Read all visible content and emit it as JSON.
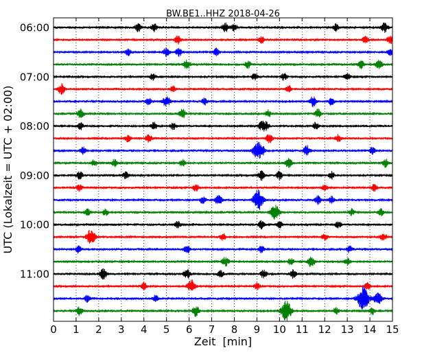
{
  "chart_data": {
    "type": "line",
    "title": "BW.BE1..HHZ 2018-04-26",
    "xlabel": "Zeit  [min]",
    "ylabel": "UTC (Lokalzeit = UTC + 02:00)",
    "xlim": [
      0,
      15
    ],
    "x_ticks": [
      "0",
      "1",
      "2",
      "3",
      "4",
      "5",
      "6",
      "7",
      "8",
      "9",
      "10",
      "11",
      "12",
      "13",
      "14",
      "15"
    ],
    "y_tick_labels": [
      "06:00",
      "07:00",
      "08:00",
      "09:00",
      "10:00",
      "11:00"
    ],
    "grid": true,
    "trace_colors": [
      "#000000",
      "#ff0000",
      "#0000ff",
      "#008000"
    ],
    "traces": [
      {
        "start": "06:00",
        "events": [
          [
            3.75,
            0.35
          ],
          [
            4.45,
            0.35
          ],
          [
            7.6,
            0.4
          ],
          [
            8.0,
            0.3
          ],
          [
            12.5,
            0.3
          ],
          [
            14.65,
            0.4
          ]
        ]
      },
      {
        "start": "06:15",
        "events": [
          [
            5.5,
            0.35
          ],
          [
            9.2,
            0.3
          ],
          [
            13.8,
            0.3
          ],
          [
            14.9,
            0.35
          ]
        ]
      },
      {
        "start": "06:30",
        "events": [
          [
            3.3,
            0.3
          ],
          [
            5.0,
            0.35
          ],
          [
            5.55,
            0.35
          ],
          [
            7.2,
            0.3
          ],
          [
            14.9,
            0.3
          ]
        ]
      },
      {
        "start": "06:45",
        "events": [
          [
            5.9,
            0.4
          ],
          [
            8.6,
            0.3
          ],
          [
            13.6,
            0.35
          ],
          [
            14.4,
            0.4
          ]
        ]
      },
      {
        "start": "07:00",
        "events": [
          [
            4.4,
            0.3
          ],
          [
            8.9,
            0.3
          ],
          [
            10.2,
            0.3
          ],
          [
            13.0,
            0.3
          ]
        ]
      },
      {
        "start": "07:15",
        "events": [
          [
            0.35,
            0.45
          ],
          [
            5.3,
            0.3
          ],
          [
            10.4,
            0.3
          ]
        ]
      },
      {
        "start": "07:30",
        "events": [
          [
            4.2,
            0.3
          ],
          [
            5.0,
            0.5
          ],
          [
            6.7,
            0.3
          ],
          [
            11.5,
            0.45
          ],
          [
            12.3,
            0.3
          ]
        ]
      },
      {
        "start": "07:45",
        "events": [
          [
            1.2,
            0.4
          ],
          [
            5.7,
            0.4
          ],
          [
            9.5,
            0.3
          ],
          [
            11.7,
            0.35
          ]
        ]
      },
      {
        "start": "08:00",
        "events": [
          [
            1.2,
            0.3
          ],
          [
            4.45,
            0.35
          ],
          [
            5.3,
            0.3
          ],
          [
            9.2,
            0.35
          ],
          [
            9.4,
            0.35
          ],
          [
            11.6,
            0.3
          ]
        ]
      },
      {
        "start": "08:15",
        "events": [
          [
            3.3,
            0.3
          ],
          [
            4.2,
            0.35
          ],
          [
            9.55,
            0.4
          ],
          [
            12.6,
            0.3
          ]
        ]
      },
      {
        "start": "08:30",
        "events": [
          [
            1.3,
            0.3
          ],
          [
            9.0,
            0.65
          ],
          [
            9.2,
            0.45
          ],
          [
            11.2,
            0.45
          ],
          [
            14.1,
            0.3
          ]
        ]
      },
      {
        "start": "08:45",
        "events": [
          [
            1.8,
            0.3
          ],
          [
            2.7,
            0.3
          ],
          [
            5.7,
            0.3
          ],
          [
            10.4,
            0.4
          ],
          [
            14.7,
            0.35
          ]
        ]
      },
      {
        "start": "09:00",
        "events": [
          [
            1.15,
            0.35
          ],
          [
            3.2,
            0.3
          ],
          [
            9.2,
            0.4
          ],
          [
            10.0,
            0.35
          ],
          [
            12.3,
            0.3
          ]
        ]
      },
      {
        "start": "09:15",
        "events": [
          [
            1.15,
            0.3
          ],
          [
            6.3,
            0.3
          ],
          [
            12.0,
            0.3
          ],
          [
            14.2,
            0.3
          ]
        ]
      },
      {
        "start": "09:30",
        "events": [
          [
            6.6,
            0.3
          ],
          [
            7.3,
            0.45
          ],
          [
            9.05,
            0.85
          ],
          [
            11.7,
            0.35
          ],
          [
            12.3,
            0.3
          ]
        ]
      },
      {
        "start": "09:45",
        "events": [
          [
            1.5,
            0.3
          ],
          [
            2.3,
            0.3
          ],
          [
            9.8,
            0.65
          ],
          [
            13.2,
            0.3
          ],
          [
            14.5,
            0.3
          ]
        ]
      },
      {
        "start": "10:00",
        "events": [
          [
            5.5,
            0.3
          ],
          [
            9.2,
            0.35
          ],
          [
            10.0,
            0.3
          ],
          [
            12.6,
            0.3
          ]
        ]
      },
      {
        "start": "10:15",
        "events": [
          [
            1.65,
            0.65
          ],
          [
            7.5,
            0.3
          ],
          [
            12.0,
            0.3
          ],
          [
            14.6,
            0.35
          ]
        ]
      },
      {
        "start": "10:30",
        "events": [
          [
            1.1,
            0.3
          ],
          [
            5.9,
            0.35
          ],
          [
            9.2,
            0.3
          ],
          [
            13.1,
            0.3
          ]
        ]
      },
      {
        "start": "10:45",
        "events": [
          [
            7.6,
            0.4
          ],
          [
            10.5,
            0.3
          ],
          [
            11.4,
            0.45
          ],
          [
            13.0,
            0.3
          ]
        ]
      },
      {
        "start": "11:00",
        "events": [
          [
            2.2,
            0.45
          ],
          [
            5.9,
            0.4
          ],
          [
            7.4,
            0.3
          ],
          [
            9.3,
            0.35
          ],
          [
            10.6,
            0.35
          ]
        ]
      },
      {
        "start": "11:15",
        "events": [
          [
            4.0,
            0.3
          ],
          [
            6.1,
            0.55
          ],
          [
            9.0,
            0.3
          ],
          [
            13.9,
            0.3
          ]
        ]
      },
      {
        "start": "11:30",
        "events": [
          [
            1.5,
            0.3
          ],
          [
            4.5,
            0.3
          ],
          [
            13.7,
            1.0
          ],
          [
            14.35,
            0.55
          ]
        ]
      },
      {
        "start": "11:45",
        "events": [
          [
            1.15,
            0.35
          ],
          [
            6.3,
            0.45
          ],
          [
            10.3,
            0.85
          ],
          [
            12.5,
            0.3
          ],
          [
            14.1,
            0.3
          ]
        ]
      }
    ]
  }
}
